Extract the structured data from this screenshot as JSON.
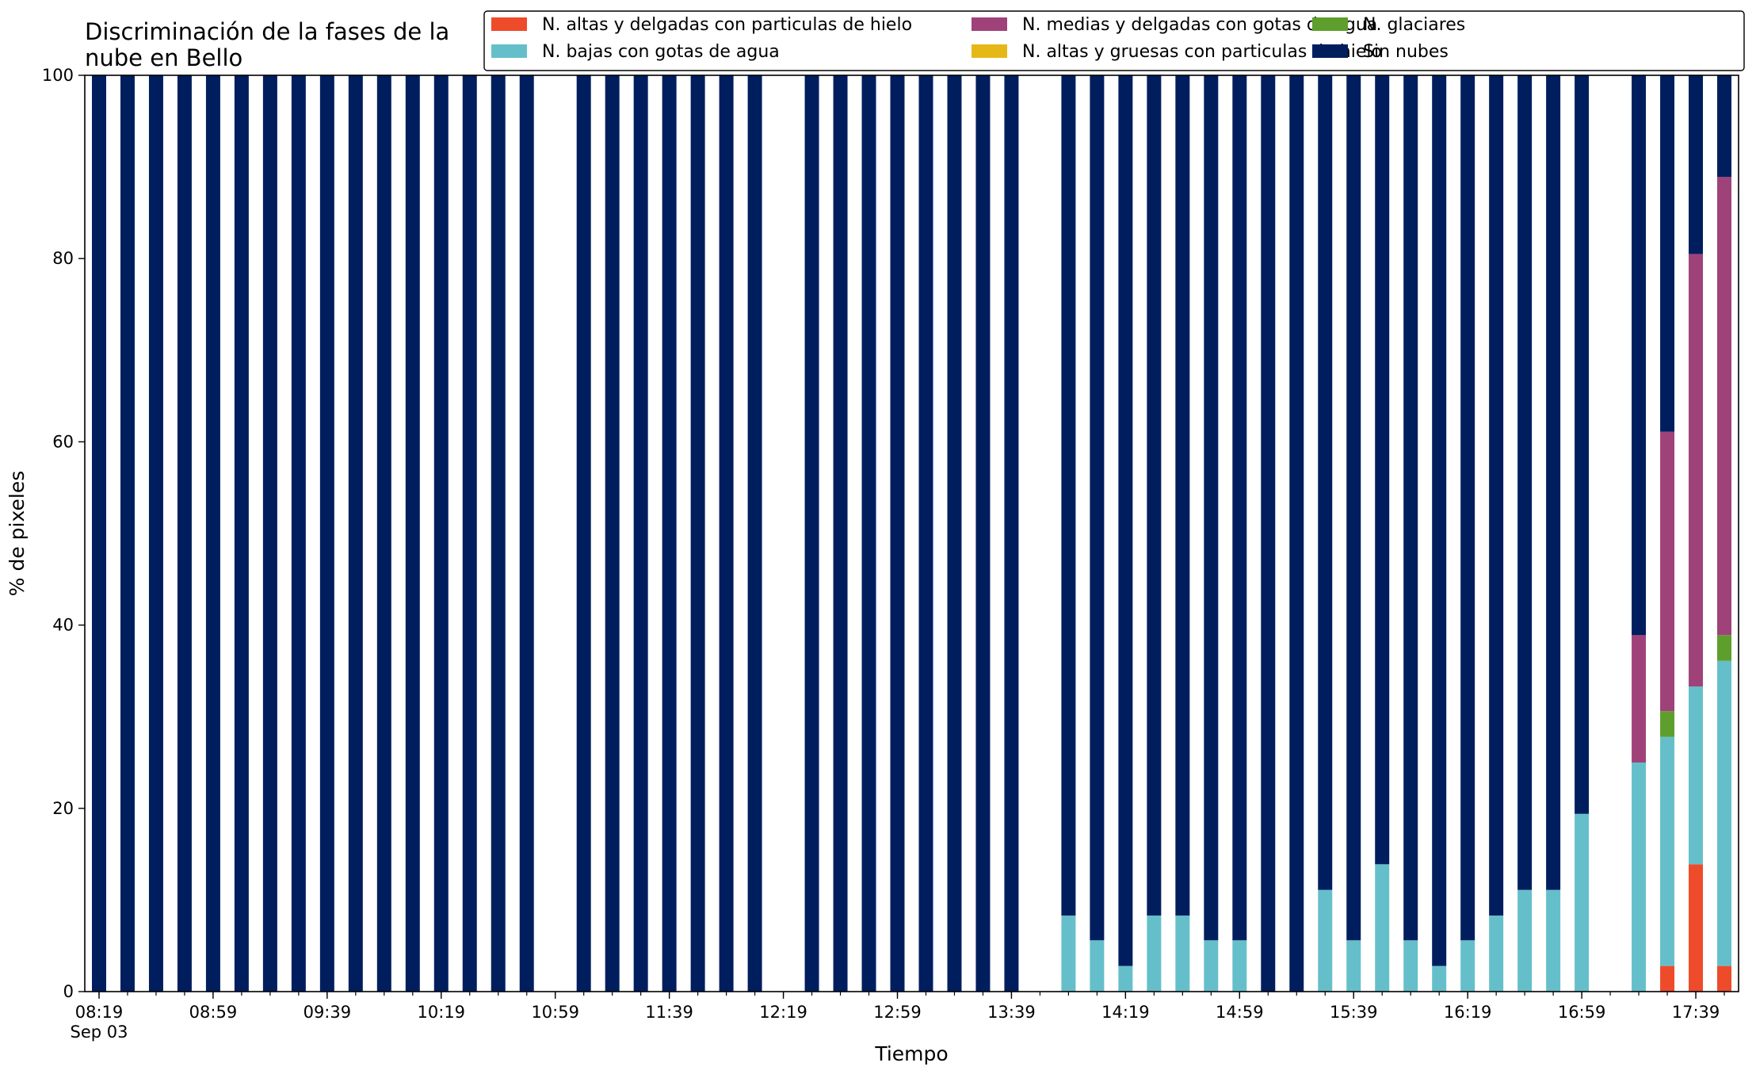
{
  "chart_data": {
    "type": "bar",
    "stacked": true,
    "title_lines": [
      "Discriminación de la fases de la",
      "nube en Bello"
    ],
    "xlabel": "Tiempo",
    "ylabel": "% de pixeles",
    "ylim": [
      0,
      100
    ],
    "yticks": [
      "0",
      "20",
      "40",
      "60",
      "80",
      "100"
    ],
    "xticks": [
      {
        "x": 0,
        "label": "08:19",
        "sub": "Sep 03"
      },
      {
        "x": 4,
        "label": "08:59"
      },
      {
        "x": 8,
        "label": "09:39"
      },
      {
        "x": 12,
        "label": "10:19"
      },
      {
        "x": 16,
        "label": "10:59"
      },
      {
        "x": 20,
        "label": "11:39"
      },
      {
        "x": 24,
        "label": "12:19"
      },
      {
        "x": 28,
        "label": "12:59"
      },
      {
        "x": 32,
        "label": "13:39"
      },
      {
        "x": 36,
        "label": "14:19"
      },
      {
        "x": 40,
        "label": "14:59"
      },
      {
        "x": 44,
        "label": "15:39"
      },
      {
        "x": 48,
        "label": "16:19"
      },
      {
        "x": 52,
        "label": "16:59"
      },
      {
        "x": 56,
        "label": "17:39"
      }
    ],
    "grid": false,
    "legend_position": "top-right",
    "slots": 58,
    "bar_width": 0.5,
    "series": [
      {
        "name": "N. altas y delgadas con particulas de hielo",
        "color": "#ee4b2b"
      },
      {
        "name": "N. altas y gruesas con particulas de hielo",
        "color": "#e6b817"
      },
      {
        "name": "N. bajas con gotas de agua",
        "color": "#65bfca"
      },
      {
        "name": "N. glaciares",
        "color": "#5e9e2d"
      },
      {
        "name": "N. medias y delgadas con gotas de agua",
        "color": "#a0427a"
      },
      {
        "name": "Sin nubes",
        "color": "#001e5e"
      }
    ],
    "legend_order": [
      0,
      2,
      4,
      1,
      3,
      5
    ],
    "bars": [
      {
        "x": 0,
        "values": [
          0,
          0,
          0,
          0,
          0,
          100
        ]
      },
      {
        "x": 1,
        "values": [
          0,
          0,
          0,
          0,
          0,
          100
        ]
      },
      {
        "x": 2,
        "values": [
          0,
          0,
          0,
          0,
          0,
          100
        ]
      },
      {
        "x": 3,
        "values": [
          0,
          0,
          0,
          0,
          0,
          100
        ]
      },
      {
        "x": 4,
        "values": [
          0,
          0,
          0,
          0,
          0,
          100
        ]
      },
      {
        "x": 5,
        "values": [
          0,
          0,
          0,
          0,
          0,
          100
        ]
      },
      {
        "x": 6,
        "values": [
          0,
          0,
          0,
          0,
          0,
          100
        ]
      },
      {
        "x": 7,
        "values": [
          0,
          0,
          0,
          0,
          0,
          100
        ]
      },
      {
        "x": 8,
        "values": [
          0,
          0,
          0,
          0,
          0,
          100
        ]
      },
      {
        "x": 9,
        "values": [
          0,
          0,
          0,
          0,
          0,
          100
        ]
      },
      {
        "x": 10,
        "values": [
          0,
          0,
          0,
          0,
          0,
          100
        ]
      },
      {
        "x": 11,
        "values": [
          0,
          0,
          0,
          0,
          0,
          100
        ]
      },
      {
        "x": 12,
        "values": [
          0,
          0,
          0,
          0,
          0,
          100
        ]
      },
      {
        "x": 13,
        "values": [
          0,
          0,
          0,
          0,
          0,
          100
        ]
      },
      {
        "x": 14,
        "values": [
          0,
          0,
          0,
          0,
          0,
          100
        ]
      },
      {
        "x": 15,
        "values": [
          0,
          0,
          0,
          0,
          0,
          100
        ]
      },
      {
        "x": 17,
        "values": [
          0,
          0,
          0,
          0,
          0,
          100
        ]
      },
      {
        "x": 18,
        "values": [
          0,
          0,
          0,
          0,
          0,
          100
        ]
      },
      {
        "x": 19,
        "values": [
          0,
          0,
          0,
          0,
          0,
          100
        ]
      },
      {
        "x": 20,
        "values": [
          0,
          0,
          0,
          0,
          0,
          100
        ]
      },
      {
        "x": 21,
        "values": [
          0,
          0,
          0,
          0,
          0,
          100
        ]
      },
      {
        "x": 22,
        "values": [
          0,
          0,
          0,
          0,
          0,
          100
        ]
      },
      {
        "x": 23,
        "values": [
          0,
          0,
          0,
          0,
          0,
          100
        ]
      },
      {
        "x": 25,
        "values": [
          0,
          0,
          0,
          0,
          0,
          100
        ]
      },
      {
        "x": 26,
        "values": [
          0,
          0,
          0,
          0,
          0,
          100
        ]
      },
      {
        "x": 27,
        "values": [
          0,
          0,
          0,
          0,
          0,
          100
        ]
      },
      {
        "x": 28,
        "values": [
          0,
          0,
          0,
          0,
          0,
          100
        ]
      },
      {
        "x": 29,
        "values": [
          0,
          0,
          0,
          0,
          0,
          100
        ]
      },
      {
        "x": 30,
        "values": [
          0,
          0,
          0,
          0,
          0,
          100
        ]
      },
      {
        "x": 31,
        "values": [
          0,
          0,
          0,
          0,
          0,
          100
        ]
      },
      {
        "x": 32,
        "values": [
          0,
          0,
          0,
          0,
          0,
          100
        ]
      },
      {
        "x": 34,
        "values": [
          0,
          0,
          8.3,
          0,
          0,
          91.7
        ]
      },
      {
        "x": 35,
        "values": [
          0,
          0,
          5.6,
          0,
          0,
          94.4
        ]
      },
      {
        "x": 36,
        "values": [
          0,
          0,
          2.8,
          0,
          0,
          97.2
        ]
      },
      {
        "x": 37,
        "values": [
          0,
          0,
          8.3,
          0,
          0,
          91.7
        ]
      },
      {
        "x": 38,
        "values": [
          0,
          0,
          8.3,
          0,
          0,
          91.7
        ]
      },
      {
        "x": 39,
        "values": [
          0,
          0,
          5.6,
          0,
          0,
          94.4
        ]
      },
      {
        "x": 40,
        "values": [
          0,
          0,
          5.6,
          0,
          0,
          94.4
        ]
      },
      {
        "x": 41,
        "values": [
          0,
          0,
          0,
          0,
          0,
          100
        ]
      },
      {
        "x": 42,
        "values": [
          0,
          0,
          0,
          0,
          0,
          100
        ]
      },
      {
        "x": 43,
        "values": [
          0,
          0,
          11.1,
          0,
          0,
          88.9
        ]
      },
      {
        "x": 44,
        "values": [
          0,
          0,
          5.6,
          0,
          0,
          94.4
        ]
      },
      {
        "x": 45,
        "values": [
          0,
          0,
          13.9,
          0,
          0,
          86.1
        ]
      },
      {
        "x": 46,
        "values": [
          0,
          0,
          5.6,
          0,
          0,
          94.4
        ]
      },
      {
        "x": 47,
        "values": [
          0,
          0,
          2.8,
          0,
          0,
          97.2
        ]
      },
      {
        "x": 48,
        "values": [
          0,
          0,
          5.6,
          0,
          0,
          94.4
        ]
      },
      {
        "x": 49,
        "values": [
          0,
          0,
          8.3,
          0,
          0,
          91.7
        ]
      },
      {
        "x": 50,
        "values": [
          0,
          0,
          11.1,
          0,
          0,
          88.9
        ]
      },
      {
        "x": 51,
        "values": [
          0,
          0,
          11.1,
          0,
          0,
          88.9
        ]
      },
      {
        "x": 52,
        "values": [
          0,
          0,
          19.4,
          0,
          0,
          80.6
        ]
      },
      {
        "x": 54,
        "values": [
          0,
          0,
          25.0,
          0,
          13.9,
          61.1
        ]
      },
      {
        "x": 55,
        "values": [
          2.8,
          0,
          25.0,
          2.8,
          30.5,
          38.9
        ]
      },
      {
        "x": 56,
        "values": [
          13.9,
          0,
          19.4,
          0,
          47.2,
          19.5
        ]
      },
      {
        "x": 57,
        "values": [
          2.8,
          0,
          33.3,
          2.8,
          50.0,
          11.1
        ]
      }
    ]
  }
}
